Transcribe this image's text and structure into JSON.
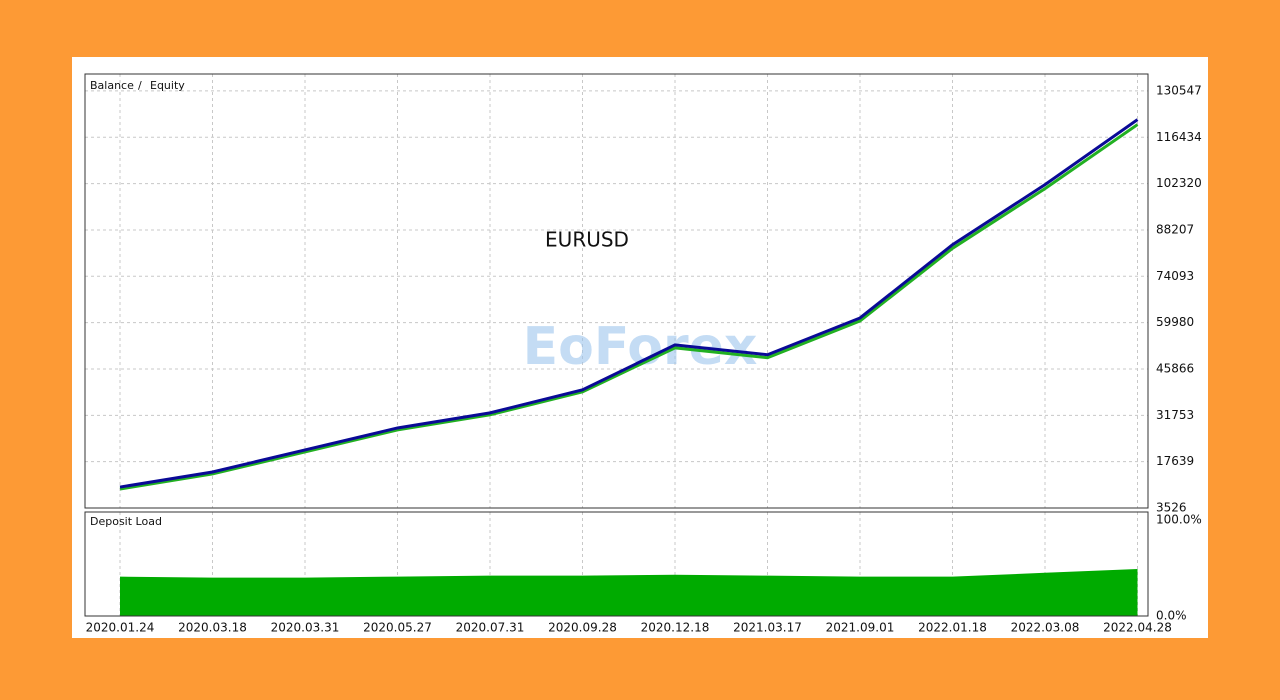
{
  "chart_data": [
    {
      "type": "line",
      "annotation": "EURUSD",
      "series": [
        {
          "name": "Balance",
          "color": "#0a0a96",
          "values": [
            9900,
            14500,
            21200,
            27900,
            32500,
            39500,
            53200,
            50200,
            61400,
            83700,
            102000,
            121800
          ]
        },
        {
          "name": "Equity",
          "color": "#22b022",
          "values": [
            9300,
            13900,
            20600,
            27300,
            31900,
            38900,
            52300,
            49300,
            60500,
            82600,
            100800,
            120300
          ]
        }
      ],
      "ylim": [
        3526,
        135700
      ],
      "yticks": [
        3526,
        17639,
        31753,
        45866,
        59980,
        74093,
        88207,
        102320,
        116434,
        130547
      ],
      "grid": true
    },
    {
      "type": "area",
      "title": "Deposit Load",
      "color": "#00ab00",
      "categories": [
        "2020.01.24",
        "2020.03.18",
        "2020.03.31",
        "2020.05.27",
        "2020.07.31",
        "2020.09.28",
        "2020.12.18",
        "2021.03.17",
        "2021.09.01",
        "2022.01.18",
        "2022.03.08",
        "2022.04.28"
      ],
      "values": [
        41,
        40,
        40,
        41,
        42,
        42,
        43,
        42,
        41,
        41,
        45,
        49
      ],
      "ylim": [
        0,
        100
      ],
      "yticks": [
        {
          "value": 0,
          "label": "0.0%"
        },
        {
          "value": 100,
          "label": "100.0%"
        }
      ]
    }
  ],
  "watermark": "EoForex"
}
